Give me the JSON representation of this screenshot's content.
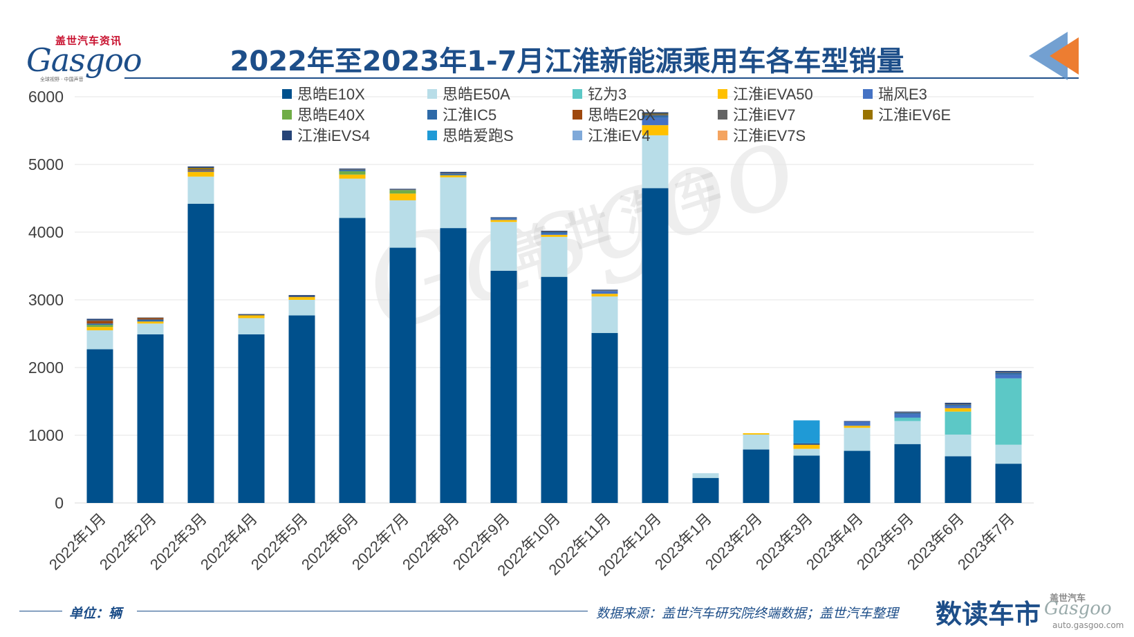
{
  "brand": {
    "logo_cn": "盖世汽车资讯",
    "logo_en": "Gasgoo",
    "logo_tag": "全球视野 · 中国声音"
  },
  "title": "2022年至2023年1-7月江淮新能源乘用车各车型销量",
  "footer": {
    "unit": "单位：辆",
    "source": "数据来源：盖世汽车研究院终端数据；盖世汽车整理",
    "brand": "数读车市",
    "logo_cn": "盖世汽车",
    "logo_en": "Gasgoo",
    "url": "auto.gasgoo.com"
  },
  "watermark": {
    "en": "Gasgoo",
    "cn": "盖世汽车"
  },
  "colors": {
    "axis": "#d9d9d9",
    "grid": "#e6e6e6",
    "tick_text": "#404040",
    "accent": "#1d4e89",
    "arrow_orange": "#ed7d31",
    "arrow_blue": "#5b8fc9"
  },
  "chart_data": {
    "type": "bar",
    "stacked": true,
    "title": "2022年至2023年1-7月江淮新能源乘用车各车型销量",
    "ylabel": "单位：辆",
    "ylim": [
      0,
      6000
    ],
    "yticks": [
      0,
      1000,
      2000,
      3000,
      4000,
      5000,
      6000
    ],
    "grid": true,
    "legend_position": "top",
    "categories": [
      "2022年1月",
      "2022年2月",
      "2022年3月",
      "2022年4月",
      "2022年5月",
      "2022年6月",
      "2022年7月",
      "2022年8月",
      "2022年9月",
      "2022年10月",
      "2022年11月",
      "2022年12月",
      "2023年1月",
      "2023年2月",
      "2023年3月",
      "2023年4月",
      "2023年5月",
      "2023年6月",
      "2023年7月"
    ],
    "series": [
      {
        "name": "思皓E10X",
        "color": "#00508c",
        "values": [
          2270,
          2490,
          4420,
          2490,
          2770,
          4210,
          3770,
          4060,
          3430,
          3340,
          2510,
          4650,
          370,
          790,
          700,
          770,
          870,
          690,
          580
        ]
      },
      {
        "name": "思皓E50A",
        "color": "#b8dde8",
        "values": [
          280,
          160,
          400,
          240,
          230,
          580,
          700,
          750,
          720,
          590,
          540,
          780,
          70,
          220,
          100,
          340,
          340,
          320,
          280
        ]
      },
      {
        "name": "钇为3",
        "color": "#5cc8c6",
        "values": [
          0,
          0,
          0,
          0,
          0,
          0,
          0,
          0,
          0,
          0,
          0,
          0,
          0,
          0,
          0,
          0,
          50,
          340,
          980
        ]
      },
      {
        "name": "江淮iEVA50",
        "color": "#ffc000",
        "values": [
          50,
          30,
          70,
          40,
          40,
          60,
          100,
          30,
          30,
          30,
          40,
          150,
          0,
          20,
          60,
          30,
          0,
          50,
          0
        ]
      },
      {
        "name": "瑞风E3",
        "color": "#4472c4",
        "values": [
          0,
          0,
          0,
          0,
          0,
          0,
          0,
          0,
          20,
          20,
          40,
          110,
          0,
          0,
          0,
          60,
          50,
          30,
          50
        ]
      },
      {
        "name": "思皓E40X",
        "color": "#70ad47",
        "values": [
          30,
          0,
          0,
          0,
          0,
          50,
          50,
          0,
          0,
          0,
          0,
          0,
          0,
          0,
          0,
          0,
          0,
          0,
          0
        ]
      },
      {
        "name": "江淮IC5",
        "color": "#2e6aa8",
        "values": [
          20,
          30,
          10,
          0,
          0,
          20,
          0,
          20,
          10,
          20,
          0,
          30,
          0,
          0,
          0,
          0,
          20,
          20,
          30
        ]
      },
      {
        "name": "思皓E20X",
        "color": "#9e480e",
        "values": [
          40,
          20,
          10,
          0,
          0,
          0,
          0,
          0,
          0,
          0,
          0,
          0,
          0,
          0,
          0,
          0,
          0,
          0,
          0
        ]
      },
      {
        "name": "江淮iEV7",
        "color": "#636363",
        "values": [
          10,
          10,
          20,
          10,
          10,
          10,
          10,
          10,
          0,
          10,
          10,
          20,
          0,
          0,
          0,
          0,
          10,
          10,
          10
        ]
      },
      {
        "name": "江淮iEV6E",
        "color": "#997300",
        "values": [
          0,
          0,
          20,
          0,
          0,
          0,
          0,
          0,
          0,
          0,
          0,
          10,
          0,
          0,
          0,
          0,
          0,
          0,
          0
        ]
      },
      {
        "name": "江淮iEVS4",
        "color": "#264478",
        "values": [
          20,
          0,
          20,
          10,
          20,
          10,
          10,
          20,
          10,
          10,
          10,
          20,
          0,
          0,
          20,
          10,
          10,
          20,
          20
        ]
      },
      {
        "name": "思皓爱跑S",
        "color": "#1f9ad6",
        "values": [
          0,
          0,
          0,
          0,
          0,
          0,
          0,
          0,
          0,
          0,
          0,
          0,
          0,
          0,
          340,
          0,
          0,
          0,
          0
        ]
      },
      {
        "name": "江淮iEV4",
        "color": "#7fa9d9",
        "values": [
          0,
          0,
          0,
          0,
          0,
          0,
          0,
          0,
          0,
          0,
          0,
          0,
          0,
          0,
          0,
          0,
          0,
          0,
          0
        ]
      },
      {
        "name": "江淮iEV7S",
        "color": "#f4a460",
        "values": [
          0,
          0,
          0,
          0,
          0,
          0,
          0,
          0,
          0,
          0,
          0,
          0,
          0,
          0,
          0,
          0,
          0,
          0,
          0
        ]
      }
    ]
  }
}
